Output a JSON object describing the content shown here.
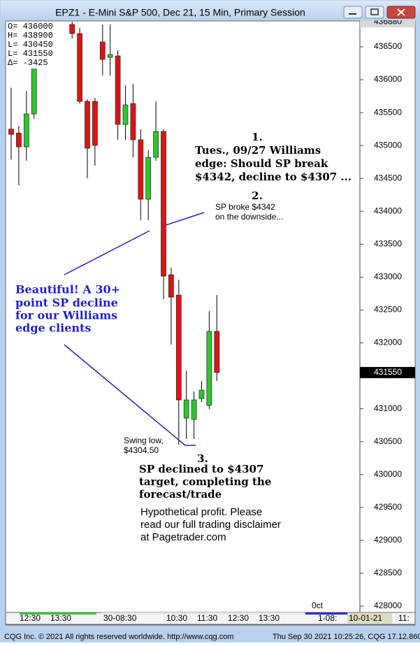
{
  "chart_data": {
    "type": "candlestick",
    "title": "EPZ1 - E-Mini S&P 500, Dec 21, 15 Min, Primary Session",
    "info_box": [
      "O=  436000",
      "H=  438900",
      "L=  430450",
      "L=  431550",
      "Δ=   -3425"
    ],
    "open": [
      435250,
      435190,
      434980,
      435480,
      null,
      null,
      null,
      null,
      436840,
      436702,
      435671,
      435671,
      436574,
      436341,
      436362,
      435321,
      435639,
      435087,
      434184,
      434821,
      435214,
      433036,
      432728,
      430858,
      430837,
      431156,
      431050,
      432176
    ],
    "high": [
      435880,
      435300,
      435830,
      436880,
      null,
      null,
      null,
      null,
      436880,
      436787,
      435703,
      435724,
      436840,
      436840,
      436447,
      435916,
      435937,
      435246,
      434928,
      435671,
      435246,
      433143,
      432962,
      431581,
      431262,
      431421,
      432484,
      432728
    ],
    "low": [
      434790,
      434396,
      434770,
      435410,
      null,
      null,
      null,
      null,
      436628,
      435639,
      434503,
      434694,
      436064,
      436064,
      435087,
      435087,
      434821,
      433865,
      433865,
      434768,
      432664,
      431974,
      430450,
      430539,
      430539,
      431103,
      430996,
      431421
    ],
    "close": [
      435170,
      434980,
      435480,
      436840,
      null,
      null,
      null,
      null,
      436702,
      435671,
      434959,
      435002,
      436309,
      436383,
      435321,
      435618,
      435087,
      434184,
      434821,
      435214,
      433015,
      432696,
      431134,
      431134,
      431134,
      431283,
      432176,
      431550
    ],
    "up_color": "#2fc62f",
    "down_color": "#dd1515",
    "ylim": [
      427915,
      436893
    ],
    "yticks": [
      428000,
      428500,
      429000,
      429500,
      430000,
      430500,
      431000,
      431500,
      432000,
      432500,
      433000,
      433500,
      434000,
      434500,
      435000,
      435500,
      436000,
      436500
    ],
    "last_price": 431550,
    "top_price": 436880,
    "time_labels": [
      "12:30",
      "13:30",
      "30-08:30",
      "10:30",
      "11:30",
      "12:30",
      "13:30",
      "1-08:",
      "10-01-21",
      "11:"
    ],
    "month_label": "0ct",
    "annotations": [
      [
        "1.",
        "Tues., 09/27 Williams",
        "edge: Should SP break",
        "$4342, decline to $4307 ..."
      ],
      [
        "2.",
        "SP broke $4342",
        "on the downside..."
      ],
      [
        "Beautiful! A 30+",
        "point SP decline",
        "for our Williams",
        "edge clients"
      ],
      [
        "Swing low,",
        "$4304.50"
      ],
      [
        "3.",
        "SP declined to $4307",
        "target, completing the",
        "forecast/trade"
      ],
      [
        "Hypothetical profit. Please",
        "read our full trading disclaimer",
        "at Pagetrader.com"
      ]
    ],
    "footer": [
      "CQG Inc. © 2021 All rights reserved worldwide. http://www.cqg.com",
      "Thu Sep 30 2021 10:25:26, CQG 17.12.860"
    ]
  }
}
